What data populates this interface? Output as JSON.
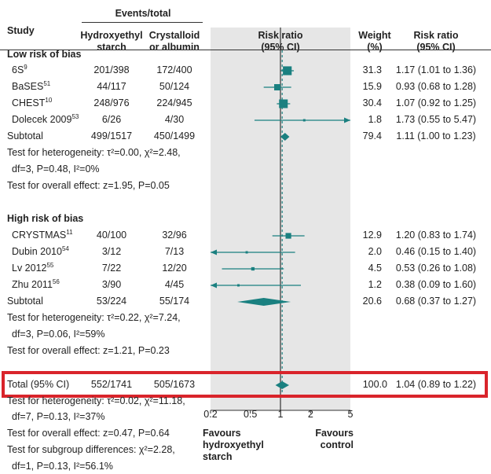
{
  "header": {
    "events_total": "Events/total",
    "study": "Study",
    "col_hes": "Hydroxyethyl\nstarch",
    "col_cc": "Crystalloid\nor albumin",
    "col_rr": "Risk ratio\n(95% CI)",
    "col_weight": "Weight\n(%)",
    "col_rr2": "Risk ratio\n(95% CI)"
  },
  "chart_data": {
    "type": "forest",
    "axis": {
      "scale": "log",
      "ticks": [
        0.2,
        0.5,
        1,
        2,
        5
      ],
      "tick_labels": [
        "0.2",
        "0.5",
        "1",
        "2",
        "5"
      ],
      "xlim": [
        0.2,
        5
      ],
      "null_value": 1
    },
    "favours_left": "Favours\nhydroxyethyl\nstarch",
    "favours_right": "Favours\ncontrol",
    "overall_line_value": 1.04,
    "groups": [
      {
        "title": "Low risk of bias",
        "studies": [
          {
            "name": "6S",
            "ref": "9",
            "hes": "201/398",
            "cc": "172/400",
            "weight": "31.3",
            "rr_text": "1.17 (1.01 to 1.36)",
            "rr": 1.17,
            "lo": 1.01,
            "hi": 1.36,
            "w": 31.3
          },
          {
            "name": "BaSES",
            "ref": "51",
            "hes": "44/117",
            "cc": "50/124",
            "weight": "15.9",
            "rr_text": "0.93 (0.68 to 1.28)",
            "rr": 0.93,
            "lo": 0.68,
            "hi": 1.28,
            "w": 15.9
          },
          {
            "name": "CHEST",
            "ref": "10",
            "hes": "248/976",
            "cc": "224/945",
            "weight": "30.4",
            "rr_text": "1.07 (0.92 to 1.25)",
            "rr": 1.07,
            "lo": 0.92,
            "hi": 1.25,
            "w": 30.4
          },
          {
            "name": "Dolecek 2009",
            "ref": "53",
            "hes": "6/26",
            "cc": "4/30",
            "weight": "1.8",
            "rr_text": "1.73 (0.55 to 5.47)",
            "rr": 1.73,
            "lo": 0.55,
            "hi": 5.47,
            "w": 1.8
          }
        ],
        "subtotal": {
          "label": "Subtotal",
          "hes": "499/1517",
          "cc": "450/1499",
          "weight": "79.4",
          "rr_text": "1.11 (1.00 to 1.23)",
          "rr": 1.11,
          "lo": 1.0,
          "hi": 1.23
        },
        "het1": "Test for heterogeneity: τ²=0.00, χ²=2.48,",
        "het2": "df=3, P=0.48, I²=0%",
        "overall": "Test for overall effect: z=1.95, P=0.05"
      },
      {
        "title": "High risk of bias",
        "studies": [
          {
            "name": "CRYSTMAS",
            "ref": "11",
            "hes": "40/100",
            "cc": "32/96",
            "weight": "12.9",
            "rr_text": "1.20 (0.83 to 1.74)",
            "rr": 1.2,
            "lo": 0.83,
            "hi": 1.74,
            "w": 12.9
          },
          {
            "name": "Dubin 2010",
            "ref": "54",
            "hes": "3/12",
            "cc": "7/13",
            "weight": "2.0",
            "rr_text": "0.46 (0.15 to 1.40)",
            "rr": 0.46,
            "lo": 0.15,
            "hi": 1.4,
            "w": 2.0
          },
          {
            "name": "Lv 2012",
            "ref": "55",
            "hes": "7/22",
            "cc": "12/20",
            "weight": "4.5",
            "rr_text": "0.53 (0.26 to 1.08)",
            "rr": 0.53,
            "lo": 0.26,
            "hi": 1.08,
            "w": 4.5
          },
          {
            "name": "Zhu 2011",
            "ref": "56",
            "hes": "3/90",
            "cc": "4/45",
            "weight": "1.2",
            "rr_text": "0.38 (0.09 to 1.60)",
            "rr": 0.38,
            "lo": 0.09,
            "hi": 1.6,
            "w": 1.2
          }
        ],
        "subtotal": {
          "label": "Subtotal",
          "hes": "53/224",
          "cc": "55/174",
          "weight": "20.6",
          "rr_text": "0.68 (0.37 to 1.27)",
          "rr": 0.68,
          "lo": 0.37,
          "hi": 1.27
        },
        "het1": "Test for heterogeneity: τ²=0.22, χ²=7.24,",
        "het2": "df=3, P=0.06, I²=59%",
        "overall": "Test for overall effect: z=1.21, P=0.23"
      }
    ],
    "total": {
      "label": "Total (95% CI)",
      "hes": "552/1741",
      "cc": "505/1673",
      "weight": "100.0",
      "rr_text": "1.04 (0.89 to 1.22)",
      "rr": 1.04,
      "lo": 0.89,
      "hi": 1.22
    },
    "footer": {
      "het1": "Test for heterogeneity: τ²=0.02, χ²=11.18,",
      "het2": "df=7, P=0.13, I²=37%",
      "overall": "Test for overall effect: z=0.47, P=0.64",
      "subgroup1": "Test for subgroup differences: χ²=2.28,",
      "subgroup2": "df=1, P=0.13, I²=56.1%"
    },
    "colors": {
      "marker": "#1a8080",
      "shade": "#e6e6e6",
      "highlight": "#d9242b",
      "text": "#222222"
    }
  }
}
